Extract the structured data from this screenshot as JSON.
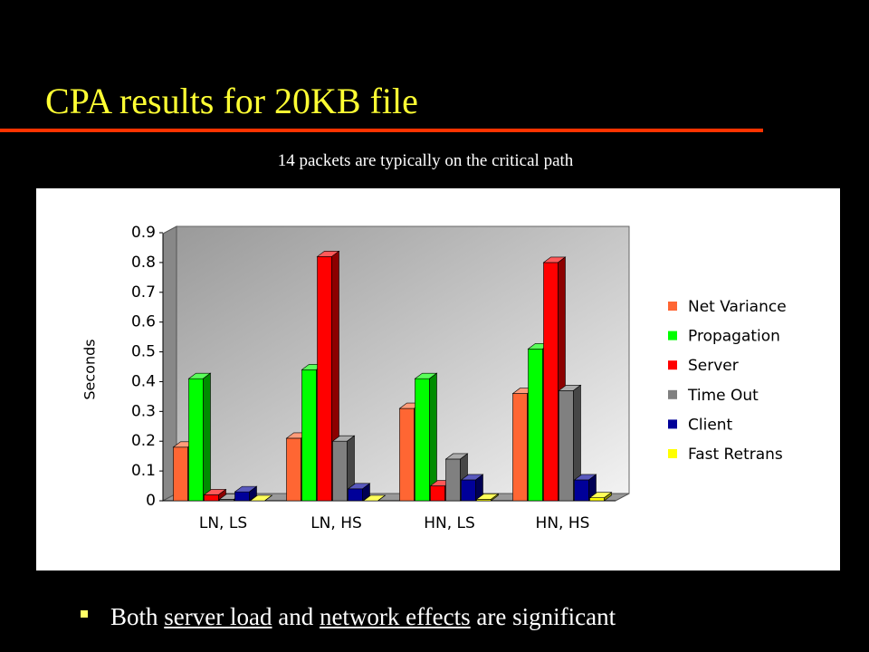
{
  "title": "CPA results for 20KB file",
  "subtitle": "14 packets are typically on the critical path",
  "bullet": [
    "Both ",
    "server load",
    " and ",
    "network effects",
    " are significant"
  ],
  "chart_data": {
    "type": "bar",
    "y_label": "Seconds",
    "categories": [
      "LN, LS",
      "LN, HS",
      "HN, LS",
      "HN, HS"
    ],
    "series": [
      {
        "name": "Net Variance",
        "color": "#ff6633",
        "values": [
          0.18,
          0.21,
          0.31,
          0.36
        ]
      },
      {
        "name": "Propagation",
        "color": "#00ff00",
        "values": [
          0.41,
          0.44,
          0.41,
          0.51
        ]
      },
      {
        "name": "Server",
        "color": "#ff0000",
        "values": [
          0.02,
          0.82,
          0.05,
          0.8
        ]
      },
      {
        "name": "Time Out",
        "color": "#808080",
        "values": [
          0.005,
          0.2,
          0.14,
          0.37
        ]
      },
      {
        "name": "Client",
        "color": "#000099",
        "values": [
          0.03,
          0.04,
          0.07,
          0.07
        ]
      },
      {
        "name": "Fast Retrans",
        "color": "#ffff00",
        "values": [
          0,
          0,
          0.005,
          0.01
        ]
      }
    ],
    "ylim": [
      0,
      0.9
    ],
    "yticks": [
      0,
      0.1,
      0.2,
      0.3,
      0.4,
      0.5,
      0.6,
      0.7,
      0.8,
      0.9
    ],
    "legend": "right"
  }
}
